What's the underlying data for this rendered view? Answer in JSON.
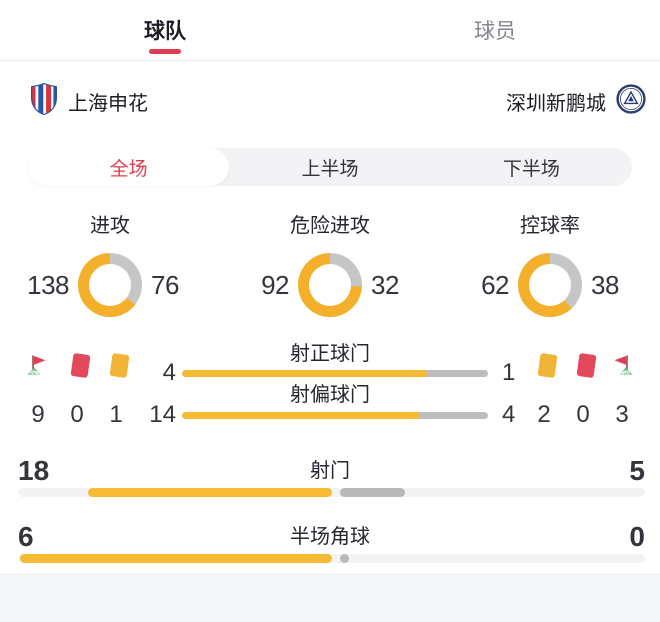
{
  "tabs": {
    "team": "球队",
    "players": "球员"
  },
  "teams": {
    "home": "上海申花",
    "away": "深圳新鹏城"
  },
  "periods": {
    "full": "全场",
    "first": "上半场",
    "second": "下半场"
  },
  "stats": {
    "donuts": [
      {
        "title": "进攻",
        "home": 138,
        "away": 76
      },
      {
        "title": "危险进攻",
        "home": 92,
        "away": 32
      },
      {
        "title": "控球率",
        "home": 62,
        "away": 38
      }
    ],
    "mid_bars": [
      {
        "title": "射正球门",
        "home": 4,
        "away": 1
      },
      {
        "title": "射偏球门",
        "home": 14,
        "away": 4
      }
    ],
    "bottom_bars": [
      {
        "title": "射门",
        "home": 18,
        "away": 5
      },
      {
        "title": "半场角球",
        "home": 6,
        "away": 0
      }
    ],
    "cards": {
      "home": {
        "corner": 9,
        "red": 0,
        "yellow": 1
      },
      "away": {
        "corner": 3,
        "red": 0,
        "yellow": 2
      }
    }
  },
  "icons": [
    "corner-flag-icon",
    "red-card-icon",
    "yellow-card-icon",
    "home-team-crest",
    "away-team-crest"
  ],
  "colors": {
    "accent": "#e23c50",
    "donut_home": "#f4af2b",
    "donut_away": "#c6c6c6",
    "bar_home": "#f6ba33",
    "bar_away": "#bdbdbd",
    "bar_away_bottom": "#b9b9b9",
    "track": "#f3f3f4",
    "red_card": "#e2495b",
    "yellow_card": "#f2b437",
    "flag_green": "#6fc287"
  },
  "chart_data": [
    {
      "type": "pie",
      "title": "进攻",
      "labels": [
        "上海申花",
        "深圳新鹏城"
      ],
      "values": [
        138,
        76
      ]
    },
    {
      "type": "pie",
      "title": "危险进攻",
      "labels": [
        "上海申花",
        "深圳新鹏城"
      ],
      "values": [
        92,
        32
      ]
    },
    {
      "type": "pie",
      "title": "控球率",
      "labels": [
        "上海申花",
        "深圳新鹏城"
      ],
      "values": [
        62,
        38
      ]
    },
    {
      "type": "bar",
      "title": "射正球门",
      "labels": [
        "上海申花",
        "深圳新鹏城"
      ],
      "values": [
        4,
        1
      ]
    },
    {
      "type": "bar",
      "title": "射偏球门",
      "labels": [
        "上海申花",
        "深圳新鹏城"
      ],
      "values": [
        14,
        4
      ]
    },
    {
      "type": "bar",
      "title": "射门",
      "labels": [
        "上海申花",
        "深圳新鹏城"
      ],
      "values": [
        18,
        5
      ]
    },
    {
      "type": "bar",
      "title": "半场角球",
      "labels": [
        "上海申花",
        "深圳新鹏城"
      ],
      "values": [
        6,
        0
      ]
    },
    {
      "type": "bar",
      "title": "角球",
      "labels": [
        "上海申花",
        "深圳新鹏城"
      ],
      "values": [
        9,
        3
      ]
    },
    {
      "type": "bar",
      "title": "红牌",
      "labels": [
        "上海申花",
        "深圳新鹏城"
      ],
      "values": [
        0,
        0
      ]
    },
    {
      "type": "bar",
      "title": "黄牌",
      "labels": [
        "上海申花",
        "深圳新鹏城"
      ],
      "values": [
        1,
        2
      ]
    }
  ]
}
